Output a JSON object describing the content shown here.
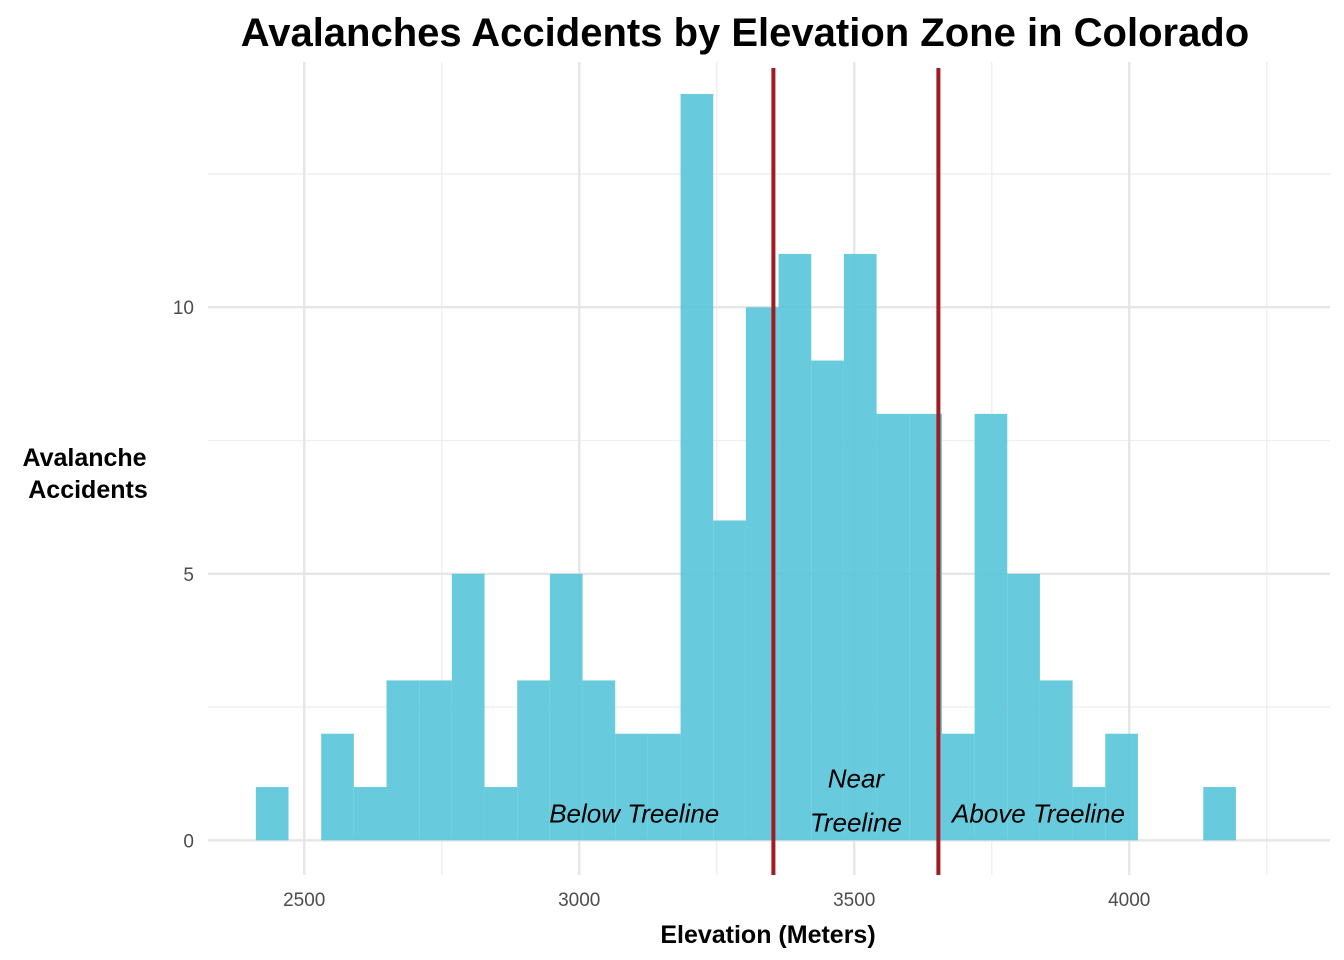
{
  "chart_data": {
    "type": "bar",
    "subtype": "histogram",
    "title": "Avalanches Accidents by Elevation Zone in Colorado",
    "xlabel": "Elevation (Meters)",
    "ylabel": [
      "Avalanche",
      "Accidents"
    ],
    "xlim": [
      2325,
      4365
    ],
    "ylim": [
      -0.65,
      14.6
    ],
    "x_ticks": [
      2500,
      3000,
      3500,
      4000
    ],
    "x_minor_ticks": [
      2750,
      3250,
      3750,
      4250
    ],
    "y_ticks": [
      0,
      5,
      10
    ],
    "y_minor_ticks": [
      2.5,
      7.5,
      12.5
    ],
    "bin_width": 59.4,
    "bin_start": 2412,
    "values": [
      1,
      0,
      2,
      1,
      3,
      3,
      5,
      1,
      3,
      5,
      3,
      2,
      2,
      14,
      6,
      10,
      11,
      9,
      11,
      8,
      8,
      2,
      8,
      5,
      3,
      1,
      2,
      0,
      0,
      1
    ],
    "bar_color": "#5bc5da",
    "bar_opacity": 0.92,
    "zone_lines": {
      "x": [
        3353,
        3653
      ],
      "color": "#a01c22"
    },
    "zone_labels": [
      {
        "id": "below",
        "lines": [
          "Below Treeline"
        ],
        "x": 3100,
        "y": 0.5
      },
      {
        "id": "near",
        "lines": [
          "Near",
          "Treeline"
        ],
        "x": 3503,
        "y": 0.75
      },
      {
        "id": "above",
        "lines": [
          "Above Treeline"
        ],
        "x": 3835,
        "y": 0.5
      }
    ],
    "grid": true,
    "legend": "none"
  }
}
